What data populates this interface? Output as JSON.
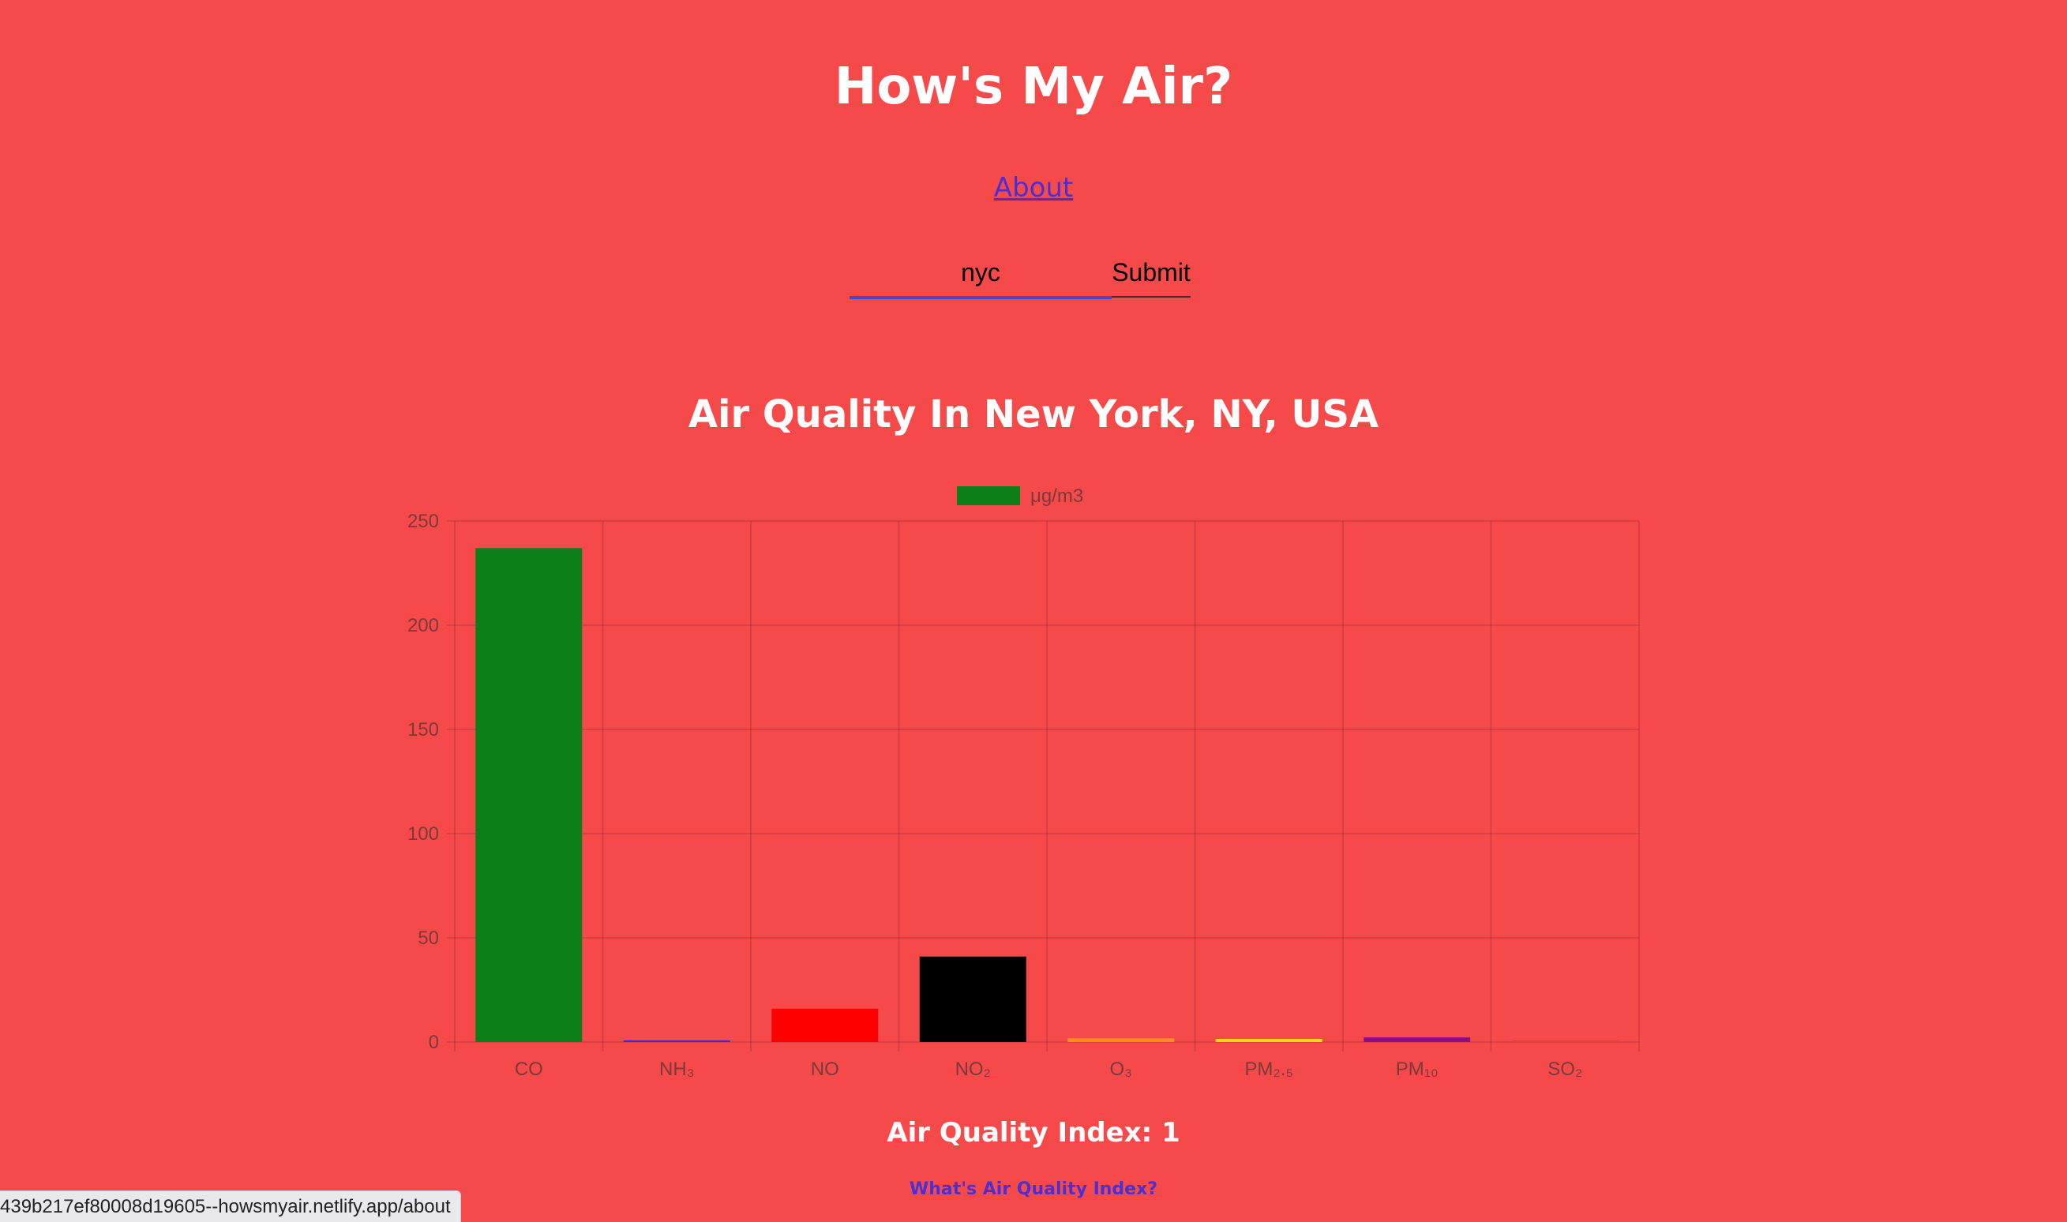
{
  "header": {
    "title": "How's My Air?",
    "about_link": "About"
  },
  "search": {
    "value": "nyc",
    "submit_label": "Submit"
  },
  "chart_title": "Air Quality In New York, NY, USA",
  "chart_data": {
    "type": "bar",
    "categories": [
      "CO",
      "NH₃",
      "NO",
      "NO₂",
      "O₃",
      "PM₂.₅",
      "PM₁₀",
      "SO₂"
    ],
    "series": [
      {
        "name": "μg/m3",
        "values": [
          237,
          0.5,
          16,
          41,
          1.8,
          1.5,
          2.2,
          0.3
        ]
      }
    ],
    "bar_colors": [
      "#0c7f1a",
      "#5a1fb0",
      "#ff0000",
      "#000000",
      "#ff8c1a",
      "#ffd21a",
      "#8a1080",
      "#d94a2a"
    ],
    "ylim": [
      0,
      250
    ],
    "yticks": [
      0,
      50,
      100,
      150,
      200,
      250
    ],
    "grid": true,
    "legend_position": "top"
  },
  "aqi": {
    "label": "Air Quality Index: 1",
    "help_link": "What's Air Quality Index?"
  },
  "status_bar": {
    "url": "439b217ef80008d19605--howsmyair.netlify.app/about"
  },
  "colors": {
    "background": "#f6494a",
    "link": "#4b2fd6",
    "input_underline": "#4a48c8"
  }
}
